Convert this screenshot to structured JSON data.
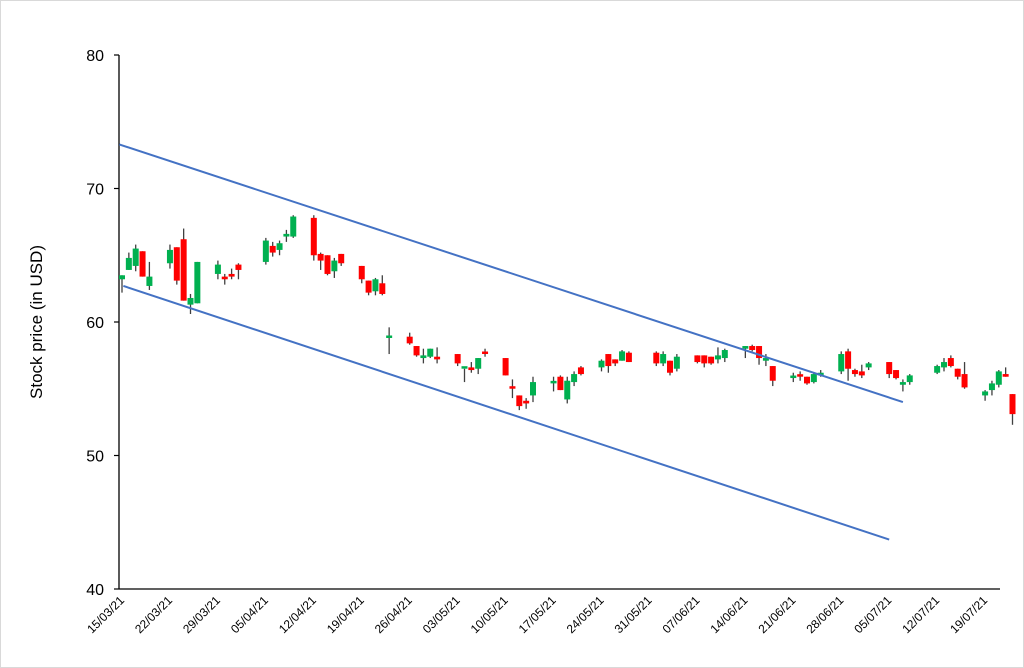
{
  "chart_data": {
    "type": "candlestick",
    "title": "",
    "xlabel": "",
    "ylabel": "Stock price (in USD)",
    "ylim": [
      40,
      80
    ],
    "yticks": [
      40,
      50,
      60,
      70,
      80
    ],
    "grid": false,
    "legend": null,
    "x_tick_labels": [
      "15/03/21",
      "22/03/21",
      "29/03/21",
      "05/04/21",
      "12/04/21",
      "19/04/21",
      "26/04/21",
      "03/05/21",
      "10/05/21",
      "17/05/21",
      "24/05/21",
      "31/05/21",
      "07/06/21",
      "14/06/21",
      "21/06/21",
      "28/06/21",
      "05/07/21",
      "12/07/21",
      "19/07/21"
    ],
    "colors": {
      "up": "#00B050",
      "down": "#FF0000",
      "wick": "#404040",
      "trendline": "#4472C4",
      "axis": "#000000"
    },
    "candles": [
      {
        "d": 0,
        "o": 63.2,
        "h": 63.5,
        "l": 62.2,
        "c": 63.5
      },
      {
        "d": 1,
        "o": 63.9,
        "h": 65.2,
        "l": 63.9,
        "c": 64.8
      },
      {
        "d": 2,
        "o": 64.2,
        "h": 65.8,
        "l": 63.8,
        "c": 65.5
      },
      {
        "d": 3,
        "o": 65.3,
        "h": 65.3,
        "l": 63.4,
        "c": 63.4
      },
      {
        "d": 4,
        "o": 62.7,
        "h": 64.5,
        "l": 62.4,
        "c": 63.4
      },
      {
        "d": 7,
        "o": 64.4,
        "h": 65.8,
        "l": 64.0,
        "c": 65.4
      },
      {
        "d": 8,
        "o": 65.6,
        "h": 65.6,
        "l": 62.8,
        "c": 63.1
      },
      {
        "d": 9,
        "o": 66.2,
        "h": 67.0,
        "l": 61.6,
        "c": 61.6
      },
      {
        "d": 10,
        "o": 61.3,
        "h": 62.1,
        "l": 60.6,
        "c": 61.8
      },
      {
        "d": 11,
        "o": 61.4,
        "h": 64.5,
        "l": 61.4,
        "c": 64.5
      },
      {
        "d": 14,
        "o": 63.6,
        "h": 64.6,
        "l": 63.2,
        "c": 64.3
      },
      {
        "d": 15,
        "o": 63.4,
        "h": 63.6,
        "l": 62.8,
        "c": 63.2
      },
      {
        "d": 16,
        "o": 63.6,
        "h": 64.0,
        "l": 63.2,
        "c": 63.4
      },
      {
        "d": 17,
        "o": 64.3,
        "h": 64.4,
        "l": 63.2,
        "c": 63.9
      },
      {
        "d": 21,
        "o": 64.5,
        "h": 66.3,
        "l": 64.3,
        "c": 66.1
      },
      {
        "d": 22,
        "o": 65.7,
        "h": 66.0,
        "l": 64.9,
        "c": 65.2
      },
      {
        "d": 23,
        "o": 65.4,
        "h": 66.1,
        "l": 65.0,
        "c": 65.9
      },
      {
        "d": 24,
        "o": 66.4,
        "h": 66.9,
        "l": 66.0,
        "c": 66.6
      },
      {
        "d": 25,
        "o": 66.4,
        "h": 68.0,
        "l": 66.3,
        "c": 67.9
      },
      {
        "d": 28,
        "o": 67.8,
        "h": 68.0,
        "l": 64.6,
        "c": 65.0
      },
      {
        "d": 29,
        "o": 65.1,
        "h": 65.2,
        "l": 63.9,
        "c": 64.6
      },
      {
        "d": 30,
        "o": 65.0,
        "h": 65.0,
        "l": 63.5,
        "c": 63.6
      },
      {
        "d": 31,
        "o": 63.8,
        "h": 64.8,
        "l": 63.3,
        "c": 64.6
      },
      {
        "d": 32,
        "o": 65.1,
        "h": 65.1,
        "l": 64.2,
        "c": 64.4
      },
      {
        "d": 35,
        "o": 64.2,
        "h": 64.2,
        "l": 62.9,
        "c": 63.2
      },
      {
        "d": 36,
        "o": 63.1,
        "h": 63.1,
        "l": 62.0,
        "c": 62.2
      },
      {
        "d": 37,
        "o": 62.3,
        "h": 63.3,
        "l": 62.0,
        "c": 63.2
      },
      {
        "d": 38,
        "o": 62.9,
        "h": 63.5,
        "l": 62.0,
        "c": 62.1
      },
      {
        "d": 39,
        "o": 58.8,
        "h": 59.6,
        "l": 57.6,
        "c": 58.9
      },
      {
        "d": 42,
        "o": 58.9,
        "h": 59.2,
        "l": 58.3,
        "c": 58.4
      },
      {
        "d": 43,
        "o": 58.2,
        "h": 58.2,
        "l": 57.4,
        "c": 57.5
      },
      {
        "d": 44,
        "o": 57.3,
        "h": 58.0,
        "l": 56.9,
        "c": 57.5
      },
      {
        "d": 45,
        "o": 57.4,
        "h": 58.0,
        "l": 57.3,
        "c": 58.0
      },
      {
        "d": 46,
        "o": 57.4,
        "h": 58.1,
        "l": 56.9,
        "c": 57.2
      },
      {
        "d": 49,
        "o": 57.6,
        "h": 57.6,
        "l": 56.7,
        "c": 56.9
      },
      {
        "d": 50,
        "o": 56.5,
        "h": 56.5,
        "l": 55.5,
        "c": 56.6
      },
      {
        "d": 51,
        "o": 56.6,
        "h": 57.0,
        "l": 56.2,
        "c": 56.4
      },
      {
        "d": 52,
        "o": 56.5,
        "h": 57.3,
        "l": 56.1,
        "c": 57.3
      },
      {
        "d": 53,
        "o": 57.7,
        "h": 58.0,
        "l": 57.4,
        "c": 57.6
      },
      {
        "d": 56,
        "o": 57.3,
        "h": 57.3,
        "l": 56.0,
        "c": 56.0
      },
      {
        "d": 57,
        "o": 55.1,
        "h": 55.7,
        "l": 54.3,
        "c": 55.0
      },
      {
        "d": 58,
        "o": 54.5,
        "h": 54.5,
        "l": 53.4,
        "c": 53.7
      },
      {
        "d": 59,
        "o": 54.1,
        "h": 54.3,
        "l": 53.5,
        "c": 53.9
      },
      {
        "d": 60,
        "o": 54.5,
        "h": 55.9,
        "l": 54.0,
        "c": 55.5
      },
      {
        "d": 63,
        "o": 55.4,
        "h": 55.9,
        "l": 54.8,
        "c": 55.5
      },
      {
        "d": 64,
        "o": 55.9,
        "h": 56.0,
        "l": 54.9,
        "c": 54.9
      },
      {
        "d": 65,
        "o": 54.2,
        "h": 55.9,
        "l": 53.9,
        "c": 55.6
      },
      {
        "d": 66,
        "o": 55.5,
        "h": 56.3,
        "l": 55.2,
        "c": 56.1
      },
      {
        "d": 67,
        "o": 56.6,
        "h": 56.7,
        "l": 56.0,
        "c": 56.1
      },
      {
        "d": 70,
        "o": 56.6,
        "h": 57.2,
        "l": 56.3,
        "c": 57.1
      },
      {
        "d": 71,
        "o": 57.6,
        "h": 57.6,
        "l": 56.2,
        "c": 56.7
      },
      {
        "d": 72,
        "o": 57.2,
        "h": 57.2,
        "l": 56.7,
        "c": 56.9
      },
      {
        "d": 73,
        "o": 57.1,
        "h": 57.9,
        "l": 57.1,
        "c": 57.8
      },
      {
        "d": 74,
        "o": 57.7,
        "h": 57.8,
        "l": 57.0,
        "c": 57.0
      },
      {
        "d": 78,
        "o": 57.7,
        "h": 57.8,
        "l": 56.7,
        "c": 56.9
      },
      {
        "d": 79,
        "o": 56.9,
        "h": 57.8,
        "l": 56.7,
        "c": 57.6
      },
      {
        "d": 80,
        "o": 57.1,
        "h": 57.1,
        "l": 56.0,
        "c": 56.2
      },
      {
        "d": 81,
        "o": 56.5,
        "h": 57.6,
        "l": 56.3,
        "c": 57.4
      },
      {
        "d": 84,
        "o": 57.5,
        "h": 57.5,
        "l": 56.9,
        "c": 57.0
      },
      {
        "d": 85,
        "o": 57.5,
        "h": 57.5,
        "l": 56.6,
        "c": 56.9
      },
      {
        "d": 86,
        "o": 57.4,
        "h": 57.4,
        "l": 56.8,
        "c": 56.9
      },
      {
        "d": 87,
        "o": 57.2,
        "h": 58.1,
        "l": 56.9,
        "c": 57.5
      },
      {
        "d": 88,
        "o": 57.3,
        "h": 58.0,
        "l": 57.0,
        "c": 57.9
      },
      {
        "d": 91,
        "o": 58.0,
        "h": 58.2,
        "l": 57.3,
        "c": 58.2
      },
      {
        "d": 92,
        "o": 58.2,
        "h": 58.3,
        "l": 57.8,
        "c": 57.9
      },
      {
        "d": 93,
        "o": 58.2,
        "h": 58.2,
        "l": 56.8,
        "c": 57.3
      },
      {
        "d": 94,
        "o": 57.1,
        "h": 57.6,
        "l": 56.7,
        "c": 57.3
      },
      {
        "d": 95,
        "o": 56.7,
        "h": 56.7,
        "l": 55.2,
        "c": 55.6
      },
      {
        "d": 98,
        "o": 55.8,
        "h": 56.2,
        "l": 55.5,
        "c": 55.9
      },
      {
        "d": 99,
        "o": 56.0,
        "h": 56.3,
        "l": 55.6,
        "c": 55.9
      },
      {
        "d": 100,
        "o": 55.9,
        "h": 55.9,
        "l": 55.3,
        "c": 55.4
      },
      {
        "d": 101,
        "o": 55.5,
        "h": 56.2,
        "l": 55.4,
        "c": 56.1
      },
      {
        "d": 102,
        "o": 56.0,
        "h": 56.4,
        "l": 55.9,
        "c": 56.2
      },
      {
        "d": 105,
        "o": 56.3,
        "h": 57.8,
        "l": 56.1,
        "c": 57.6
      },
      {
        "d": 106,
        "o": 57.8,
        "h": 58.0,
        "l": 55.6,
        "c": 56.5
      },
      {
        "d": 107,
        "o": 56.4,
        "h": 56.5,
        "l": 55.9,
        "c": 56.1
      },
      {
        "d": 108,
        "o": 56.3,
        "h": 56.8,
        "l": 55.8,
        "c": 56.0
      },
      {
        "d": 109,
        "o": 56.6,
        "h": 57.0,
        "l": 56.4,
        "c": 56.9
      },
      {
        "d": 112,
        "o": 57.0,
        "h": 57.0,
        "l": 55.8,
        "c": 56.1
      },
      {
        "d": 113,
        "o": 56.4,
        "h": 56.4,
        "l": 55.7,
        "c": 55.8
      },
      {
        "d": 114,
        "o": 55.3,
        "h": 55.7,
        "l": 54.8,
        "c": 55.5
      },
      {
        "d": 115,
        "o": 55.5,
        "h": 56.1,
        "l": 55.3,
        "c": 56.0
      },
      {
        "d": 119,
        "o": 56.2,
        "h": 56.8,
        "l": 56.1,
        "c": 56.7
      },
      {
        "d": 120,
        "o": 56.6,
        "h": 57.3,
        "l": 56.3,
        "c": 57.0
      },
      {
        "d": 121,
        "o": 57.3,
        "h": 57.5,
        "l": 56.6,
        "c": 56.7
      },
      {
        "d": 122,
        "o": 56.5,
        "h": 56.5,
        "l": 55.7,
        "c": 55.9
      },
      {
        "d": 123,
        "o": 56.1,
        "h": 57.0,
        "l": 55.0,
        "c": 55.1
      },
      {
        "d": 126,
        "o": 54.5,
        "h": 54.9,
        "l": 54.1,
        "c": 54.8
      },
      {
        "d": 127,
        "o": 54.9,
        "h": 55.6,
        "l": 54.5,
        "c": 55.4
      },
      {
        "d": 128,
        "o": 55.3,
        "h": 56.4,
        "l": 55.1,
        "c": 56.3
      },
      {
        "d": 129,
        "o": 56.1,
        "h": 56.6,
        "l": 55.9,
        "c": 55.9
      },
      {
        "d": 130,
        "o": 54.6,
        "h": 54.6,
        "l": 52.3,
        "c": 53.1
      }
    ],
    "trendlines": [
      {
        "name": "upper-channel",
        "from": {
          "d": -0.4,
          "price": 73.3
        },
        "to": {
          "d": 114,
          "price": 54.0
        }
      },
      {
        "name": "lower-channel",
        "from": {
          "d": 0.2,
          "price": 62.7
        },
        "to": {
          "d": 112,
          "price": 43.7
        }
      }
    ]
  }
}
